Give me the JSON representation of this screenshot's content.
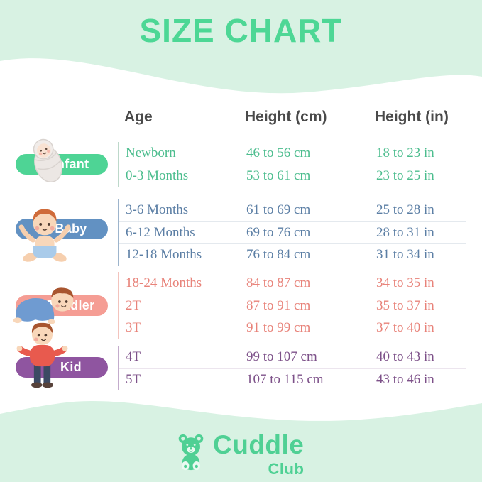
{
  "title": "SIZE CHART",
  "chart_data": {
    "type": "table",
    "title": "SIZE CHART",
    "columns": [
      "Age",
      "Height (cm)",
      "Height (in)"
    ],
    "groups": [
      {
        "label": "Infant",
        "pill_color": "#4ed495",
        "text_color": "#4cbd8e",
        "line_color": "#bdd8ca",
        "sep_color": "#e3ece7",
        "rows": [
          [
            "Newborn",
            "46 to 56 cm",
            "18 to 23 in"
          ],
          [
            "0-3 Months",
            "53 to 61 cm",
            "23 to 25 in"
          ]
        ]
      },
      {
        "label": "Baby",
        "pill_color": "#6291c2",
        "text_color": "#5c7fa5",
        "line_color": "#9db4cc",
        "sep_color": "#e4e9ee",
        "rows": [
          [
            "3-6 Months",
            "61 to 69 cm",
            "25 to 28 in"
          ],
          [
            "6-12 Months",
            "69 to 76 cm",
            "28 to 31 in"
          ],
          [
            "12-18 Months",
            "76 to 84 cm",
            "31 to 34 in"
          ]
        ]
      },
      {
        "label": "Toddler",
        "pill_color": "#f59d94",
        "text_color": "#e8837a",
        "line_color": "#f3c3bd",
        "sep_color": "#f4e7e5",
        "rows": [
          [
            "18-24 Months",
            "84 to 87 cm",
            "34 to 35 in"
          ],
          [
            "2T",
            "87 to 91 cm",
            "35 to 37 in"
          ],
          [
            "3T",
            "91 to 99 cm",
            "37 to 40 in"
          ]
        ]
      },
      {
        "label": "Kid",
        "pill_color": "#8f55a0",
        "text_color": "#7d5189",
        "line_color": "#c3abcc",
        "sep_color": "#ece5ee",
        "rows": [
          [
            "4T",
            "99 to 107 cm",
            "40 to 43 in"
          ],
          [
            "5T",
            "107 to 115 cm",
            "43 to 46 in"
          ]
        ]
      }
    ]
  },
  "brand": {
    "name": "Cuddle",
    "sub": "Club"
  },
  "colors": {
    "background_mint": "#d8f2e3",
    "card_white": "#ffffff",
    "title_green": "#4dd795",
    "header_text": "#4a4a4a",
    "brand_green": "#4fd094"
  }
}
